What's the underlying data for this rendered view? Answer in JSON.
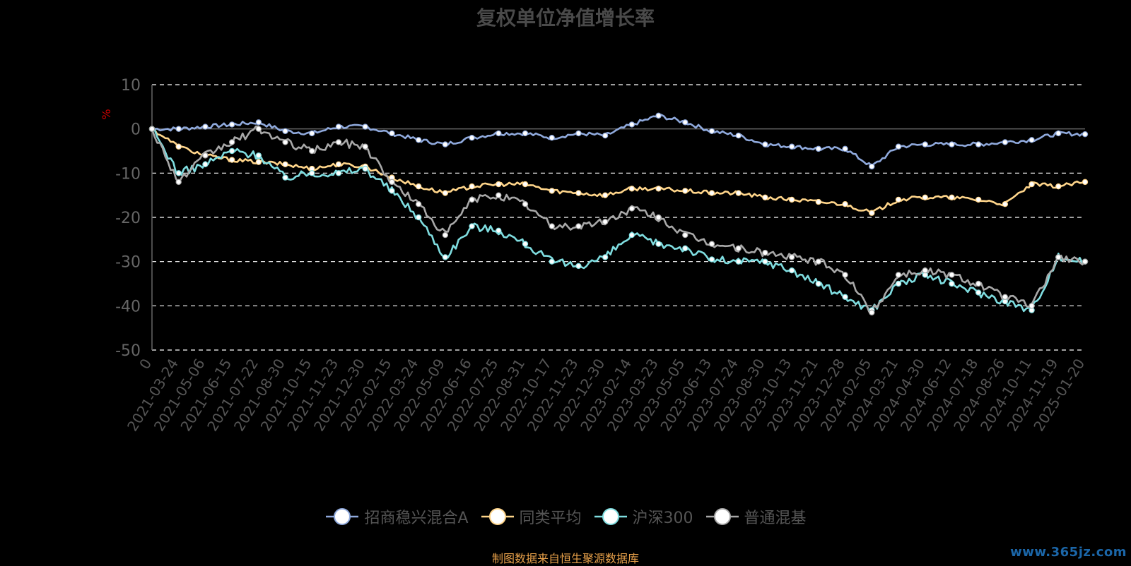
{
  "chart_data": {
    "type": "line",
    "title": "复权单位净值增长率",
    "ylabel": "%",
    "ylim": [
      -50,
      10
    ],
    "yticks": [
      10,
      0,
      -10,
      -20,
      -30,
      -40,
      -50
    ],
    "grid": "dashed horizontal",
    "legend_position": "bottom",
    "x_tick_labels": [
      "0",
      "2021-03-24",
      "2021-05-06",
      "2021-06-15",
      "2021-07-22",
      "2021-08-30",
      "2021-10-15",
      "2021-11-23",
      "2021-12-30",
      "2022-02-15",
      "2022-03-24",
      "2022-05-09",
      "2022-06-16",
      "2022-07-25",
      "2022-08-31",
      "2022-10-17",
      "2022-11-23",
      "2022-12-30",
      "2023-02-14",
      "2023-03-23",
      "2023-05-05",
      "2023-06-13",
      "2023-07-24",
      "2023-08-30",
      "2023-10-13",
      "2023-11-21",
      "2023-12-28",
      "2024-02-05",
      "2024-03-21",
      "2024-04-30",
      "2024-06-12",
      "2024-07-18",
      "2024-08-26",
      "2024-10-11",
      "2024-11-19",
      "2025-01-20"
    ],
    "series": [
      {
        "name": "招商稳兴混合A",
        "color": "#8fa9dc",
        "values": [
          0,
          0,
          0.5,
          1,
          1.5,
          -0.5,
          -1,
          0.5,
          0.5,
          -1,
          -2.5,
          -3.5,
          -2,
          -1,
          -1,
          -2,
          -1,
          -1.5,
          1,
          3,
          1.5,
          -0.5,
          -1.5,
          -3.5,
          -4,
          -4.5,
          -4.5,
          -8.5,
          -4,
          -3.5,
          -3.5,
          -3.5,
          -3,
          -2.5,
          -1,
          -1.2
        ]
      },
      {
        "name": "同类平均",
        "color": "#ffd58a",
        "values": [
          0,
          -4,
          -6,
          -7,
          -7.5,
          -8,
          -9,
          -8,
          -8.5,
          -11,
          -13,
          -14.5,
          -13,
          -12.5,
          -12.5,
          -14,
          -14.5,
          -15,
          -13.5,
          -13.5,
          -14,
          -14.5,
          -14.5,
          -15.5,
          -16,
          -16.5,
          -17,
          -19,
          -16,
          -15.5,
          -15.5,
          -16,
          -17,
          -12.5,
          -13,
          -12
        ]
      },
      {
        "name": "沪深300",
        "color": "#7fdde0",
        "values": [
          0,
          -10,
          -8,
          -5,
          -6,
          -11,
          -10,
          -10,
          -9,
          -14,
          -20,
          -29,
          -22,
          -23,
          -26,
          -30,
          -31,
          -29,
          -24,
          -26,
          -27,
          -29.5,
          -30,
          -30,
          -32,
          -35,
          -38,
          -41,
          -35,
          -33,
          -35,
          -37,
          -39,
          -41,
          -29,
          -30
        ]
      },
      {
        "name": "普通混基",
        "color": "#a8a8a8",
        "values": [
          0,
          -12,
          -6,
          -3,
          0,
          -3,
          -5,
          -3,
          -4,
          -12,
          -17,
          -24,
          -16,
          -15,
          -17,
          -22,
          -22,
          -21,
          -18,
          -20,
          -24,
          -26,
          -27,
          -28,
          -29,
          -30,
          -33,
          -41.5,
          -33,
          -32,
          -33,
          -35,
          -38,
          -40,
          -29,
          -30
        ]
      }
    ]
  },
  "source_text": "制图数据来自恒生聚源数据库",
  "watermark_text": "www.365jz.com"
}
